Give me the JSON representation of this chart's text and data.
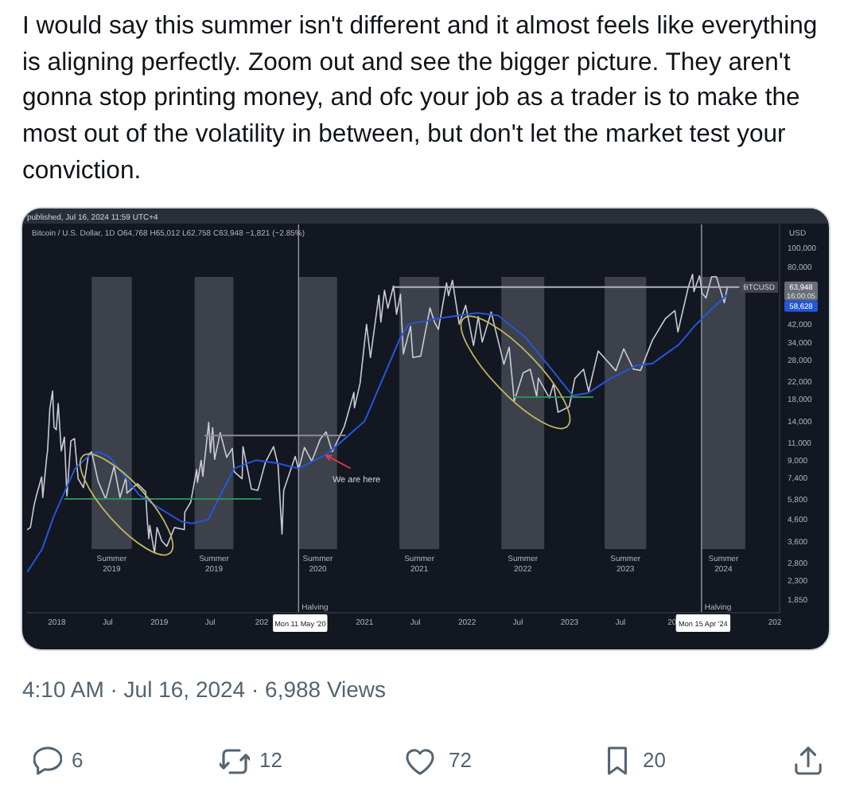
{
  "chart_data": {
    "type": "line",
    "title": "I would say this summer isn't different and it almost feels like everything is aligning perfectly. Zoom out and see the bigger picture. They aren't gonna stop printing money, and ofc your job as a trader is to make the most out of the volatility in between, but don't let the market test your conviction.",
    "subtitle": "Bitcoin / U.S. Dollar, 1D O64,768 H65,012 L62,758 C63,948 −1,821 (−2.85%)",
    "ylabel": "USD",
    "log": "y",
    "x": [
      "2017-09-17",
      "2017-09-29",
      "2017-10-12",
      "2017-10-20",
      "2017-11-08",
      "2017-11-12",
      "2017-11-26",
      "2017-11-29",
      "2017-12-07",
      "2017-12-17",
      "2017-12-22",
      "2017-12-30",
      "2018-01-06",
      "2018-01-17",
      "2018-01-28",
      "2018-02-06",
      "2018-02-20",
      "2018-03-05",
      "2018-03-18",
      "2018-04-06",
      "2018-04-24",
      "2018-05-05",
      "2018-05-28",
      "2018-06-24",
      "2018-07-24",
      "2018-08-14",
      "2018-09-04",
      "2018-09-08",
      "2018-10-15",
      "2018-11-13",
      "2018-11-20",
      "2018-11-25",
      "2018-11-28",
      "2018-12-15",
      "2018-12-24",
      "2019-01-10",
      "2019-01-28",
      "2019-02-24",
      "2019-03-31",
      "2019-04-02",
      "2019-04-23",
      "2019-05-14",
      "2019-05-17",
      "2019-05-30",
      "2019-06-05",
      "2019-06-26",
      "2019-07-02",
      "2019-07-10",
      "2019-07-17",
      "2019-08-06",
      "2019-08-29",
      "2019-09-18",
      "2019-09-25",
      "2019-10-23",
      "2019-10-26",
      "2019-11-25",
      "2019-12-18",
      "2020-01-14",
      "2020-02-12",
      "2020-02-28",
      "2020-03-13",
      "2020-03-19",
      "2020-04-29",
      "2020-05-11",
      "2020-06-01",
      "2020-06-27",
      "2020-07-27",
      "2020-08-17",
      "2020-09-08",
      "2020-10-21",
      "2020-11-24",
      "2020-11-26",
      "2020-12-16",
      "2021-01-08",
      "2021-01-22",
      "2021-02-21",
      "2021-02-28",
      "2021-03-13",
      "2021-03-25",
      "2021-04-14",
      "2021-04-25",
      "2021-05-09",
      "2021-05-19",
      "2021-06-14",
      "2021-06-22",
      "2021-07-20",
      "2021-08-22",
      "2021-09-07",
      "2021-09-21",
      "2021-10-20",
      "2021-10-27",
      "2021-11-10",
      "2021-12-04",
      "2021-12-27",
      "2022-01-24",
      "2022-02-10",
      "2022-02-24",
      "2022-03-28",
      "2022-05-12",
      "2022-05-31",
      "2022-06-18",
      "2022-07-20",
      "2022-08-14",
      "2022-09-06",
      "2022-09-12",
      "2022-10-21",
      "2022-11-05",
      "2022-11-21",
      "2022-12-31",
      "2023-01-20",
      "2023-02-20",
      "2023-03-10",
      "2023-04-13",
      "2023-06-15",
      "2023-07-13",
      "2023-08-17",
      "2023-09-11",
      "2023-10-23",
      "2023-12-08",
      "2024-01-11",
      "2024-01-22",
      "2024-02-28",
      "2024-03-14",
      "2024-03-19",
      "2024-04-08",
      "2024-04-17",
      "2024-05-01",
      "2024-05-21",
      "2024-06-07",
      "2024-07-05",
      "2024-07-16"
    ],
    "series": [
      {
        "name": "BTCUSD",
        "color": "#c9ccd4",
        "values": [
          4100,
          4200,
          5400,
          6000,
          7450,
          5900,
          9300,
          10000,
          16000,
          19700,
          13100,
          12700,
          17100,
          10000,
          11700,
          6000,
          11200,
          11500,
          7300,
          6600,
          9600,
          9900,
          7100,
          5800,
          8400,
          5900,
          7400,
          6200,
          6900,
          6300,
          4400,
          3700,
          4300,
          3150,
          4200,
          3600,
          3400,
          4200,
          4100,
          5000,
          5600,
          8100,
          7000,
          9000,
          7500,
          13800,
          9800,
          13000,
          9100,
          12300,
          9300,
          10300,
          7900,
          7300,
          10500,
          6500,
          6400,
          8800,
          10500,
          8500,
          3900,
          6400,
          9400,
          8100,
          10400,
          8900,
          11400,
          12400,
          9900,
          13200,
          19400,
          16300,
          21500,
          41900,
          28800,
          58300,
          43000,
          61700,
          50300,
          64800,
          47000,
          59000,
          30000,
          41000,
          28800,
          29300,
          50500,
          43000,
          39600,
          67000,
          58000,
          69000,
          42000,
          52000,
          33000,
          45800,
          34300,
          48200,
          26700,
          32400,
          17600,
          24200,
          25200,
          18500,
          22800,
          18200,
          21400,
          15500,
          16500,
          22700,
          25200,
          19600,
          31000,
          24800,
          31800,
          25200,
          24900,
          35000,
          44700,
          49000,
          38500,
          64000,
          73800,
          60800,
          72700,
          59600,
          56500,
          71900,
          71900,
          53500,
          63948
        ]
      },
      {
        "color": "#2456d8",
        "x": [
          "2017-09-19",
          "2017-11-10",
          "2017-12-22",
          "2018-03-07",
          "2018-04-30",
          "2018-05-31",
          "2018-07-09",
          "2018-10-20",
          "2019-01-04",
          "2019-03-20",
          "2019-04-27",
          "2019-06-24",
          "2019-08-18",
          "2019-09-25",
          "2019-12-10",
          "2020-02-24",
          "2020-05-11",
          "2020-08-18",
          "2020-10-23",
          "2021-01-01",
          "2021-05-08",
          "2021-06-07",
          "2021-09-28",
          "2022-02-06",
          "2022-04-22",
          "2022-07-26",
          "2022-10-28",
          "2023-01-12",
          "2023-03-09",
          "2023-05-22",
          "2023-08-26",
          "2023-10-23",
          "2024-01-25",
          "2024-03-21",
          "2024-06-05",
          "2024-07-16"
        ],
        "values": [
          2550,
          3300,
          4800,
          8200,
          9600,
          9900,
          9300,
          6100,
          5200,
          4500,
          4400,
          4600,
          6500,
          8200,
          9000,
          8700,
          8200,
          9600,
          11500,
          14000,
          36000,
          42000,
          45000,
          47700,
          46300,
          36400,
          25300,
          18700,
          19300,
          22500,
          26300,
          26900,
          33300,
          41100,
          52200,
          58628
        ]
      },
      {
        "color": "#b2b5be",
        "x": [
          "2021-04-14",
          "2024-08-25"
        ],
        "values": [
          64000,
          64000
        ]
      },
      {
        "color": "#8a8d96",
        "x": [
          "2019-06-13",
          "2020-10-23"
        ],
        "values": [
          11900,
          11900
        ]
      },
      {
        "color": "#2e8b57",
        "x": [
          "2018-01-30",
          "2019-12-28"
        ],
        "values": [
          5800,
          5800
        ]
      },
      {
        "color": "#2e8b57",
        "x": [
          "2022-06-18",
          "2023-03-25"
        ],
        "values": [
          18400,
          18400
        ]
      }
    ],
    "xlim": [
      "2017-09-17",
      "2025-01-18"
    ],
    "xticks": [
      {
        "value": "2018-01-01",
        "label": "2018"
      },
      {
        "value": "2018-07-01",
        "label": "Jul"
      },
      {
        "value": "2019-01-01",
        "label": "2019"
      },
      {
        "value": "2019-07-01",
        "label": "Jul"
      },
      {
        "value": "2020-01-01",
        "label": "202"
      },
      {
        "value": "2021-01-01",
        "label": "2021"
      },
      {
        "value": "2021-07-01",
        "label": "Jul"
      },
      {
        "value": "2022-01-01",
        "label": "2022"
      },
      {
        "value": "2022-07-01",
        "label": "Jul"
      },
      {
        "value": "2023-01-01",
        "label": "2023"
      },
      {
        "value": "2023-07-01",
        "label": "Jul"
      },
      {
        "value": "2024-01-01",
        "label": "20"
      },
      {
        "value": "2025-01-01",
        "label": "202"
      }
    ],
    "ylim": [
      1600,
      130000
    ],
    "yticks": [
      {
        "value": 1850,
        "label": "1,850"
      },
      {
        "value": 2300,
        "label": "2,300"
      },
      {
        "value": 2800,
        "label": "2,800"
      },
      {
        "value": 3600,
        "label": "3,600"
      },
      {
        "value": 4600,
        "label": "4,600"
      },
      {
        "value": 5800,
        "label": "5,800"
      },
      {
        "value": 7400,
        "label": "7,400"
      },
      {
        "value": 9000,
        "label": "9,000"
      },
      {
        "value": 11000,
        "label": "11,000"
      },
      {
        "value": 14000,
        "label": "14,000"
      },
      {
        "value": 18000,
        "label": "18,000"
      },
      {
        "value": 22000,
        "label": "22,000"
      },
      {
        "value": 28000,
        "label": "28,000"
      },
      {
        "value": 34000,
        "label": "34,000"
      },
      {
        "value": 42000,
        "label": "42,000"
      },
      {
        "value": 80000,
        "label": "80,000"
      },
      {
        "value": 100000,
        "label": "100,000"
      }
    ],
    "bands": [
      {
        "axis": "x",
        "from": "2018-05-05",
        "to": "2018-09-25",
        "label": "Summer 2019",
        "color": "#434651"
      },
      {
        "axis": "x",
        "from": "2019-05-07",
        "to": "2019-09-22",
        "label": "Summer 2019",
        "color": "#434651"
      },
      {
        "axis": "x",
        "from": "2020-05-11",
        "to": "2020-09-25",
        "label": "Summer 2020",
        "color": "#434651"
      },
      {
        "axis": "x",
        "from": "2021-05-05",
        "to": "2021-09-24",
        "label": "Summer 2021",
        "color": "#434651"
      },
      {
        "axis": "x",
        "from": "2022-05-03",
        "to": "2022-10-03",
        "label": "Summer 2022",
        "color": "#434651"
      },
      {
        "axis": "x",
        "from": "2023-05-06",
        "to": "2023-10-01",
        "label": "Summer 2023",
        "color": "#434651"
      },
      {
        "axis": "x",
        "from": "2024-04-15",
        "to": "2024-09-18",
        "label": "Summer 2024",
        "color": "#434651"
      }
    ],
    "ref_lines": [
      {
        "axis": "x",
        "value": "2020-05-11",
        "label": "Halving",
        "color": "#9598a1"
      },
      {
        "axis": "x",
        "value": "2024-04-15",
        "label": "Halving",
        "color": "#9598a1"
      }
    ],
    "annotations": [
      "published, Jul 16, 2024 11:59 UTC+4",
      "63,948",
      "16:00:05",
      "58,628",
      "4:10 AM · Jul 16, 2024 · 6,988 Views",
      "6",
      "12",
      "72",
      "20",
      {
        "text": "We are here",
        "x": "2020-08-17",
        "y": 9500
      },
      {
        "text": "Mon 11 May '20",
        "x": "2020-05-11"
      },
      {
        "text": "Mon 15 Apr '24",
        "x": "2024-04-15"
      }
    ]
  }
}
